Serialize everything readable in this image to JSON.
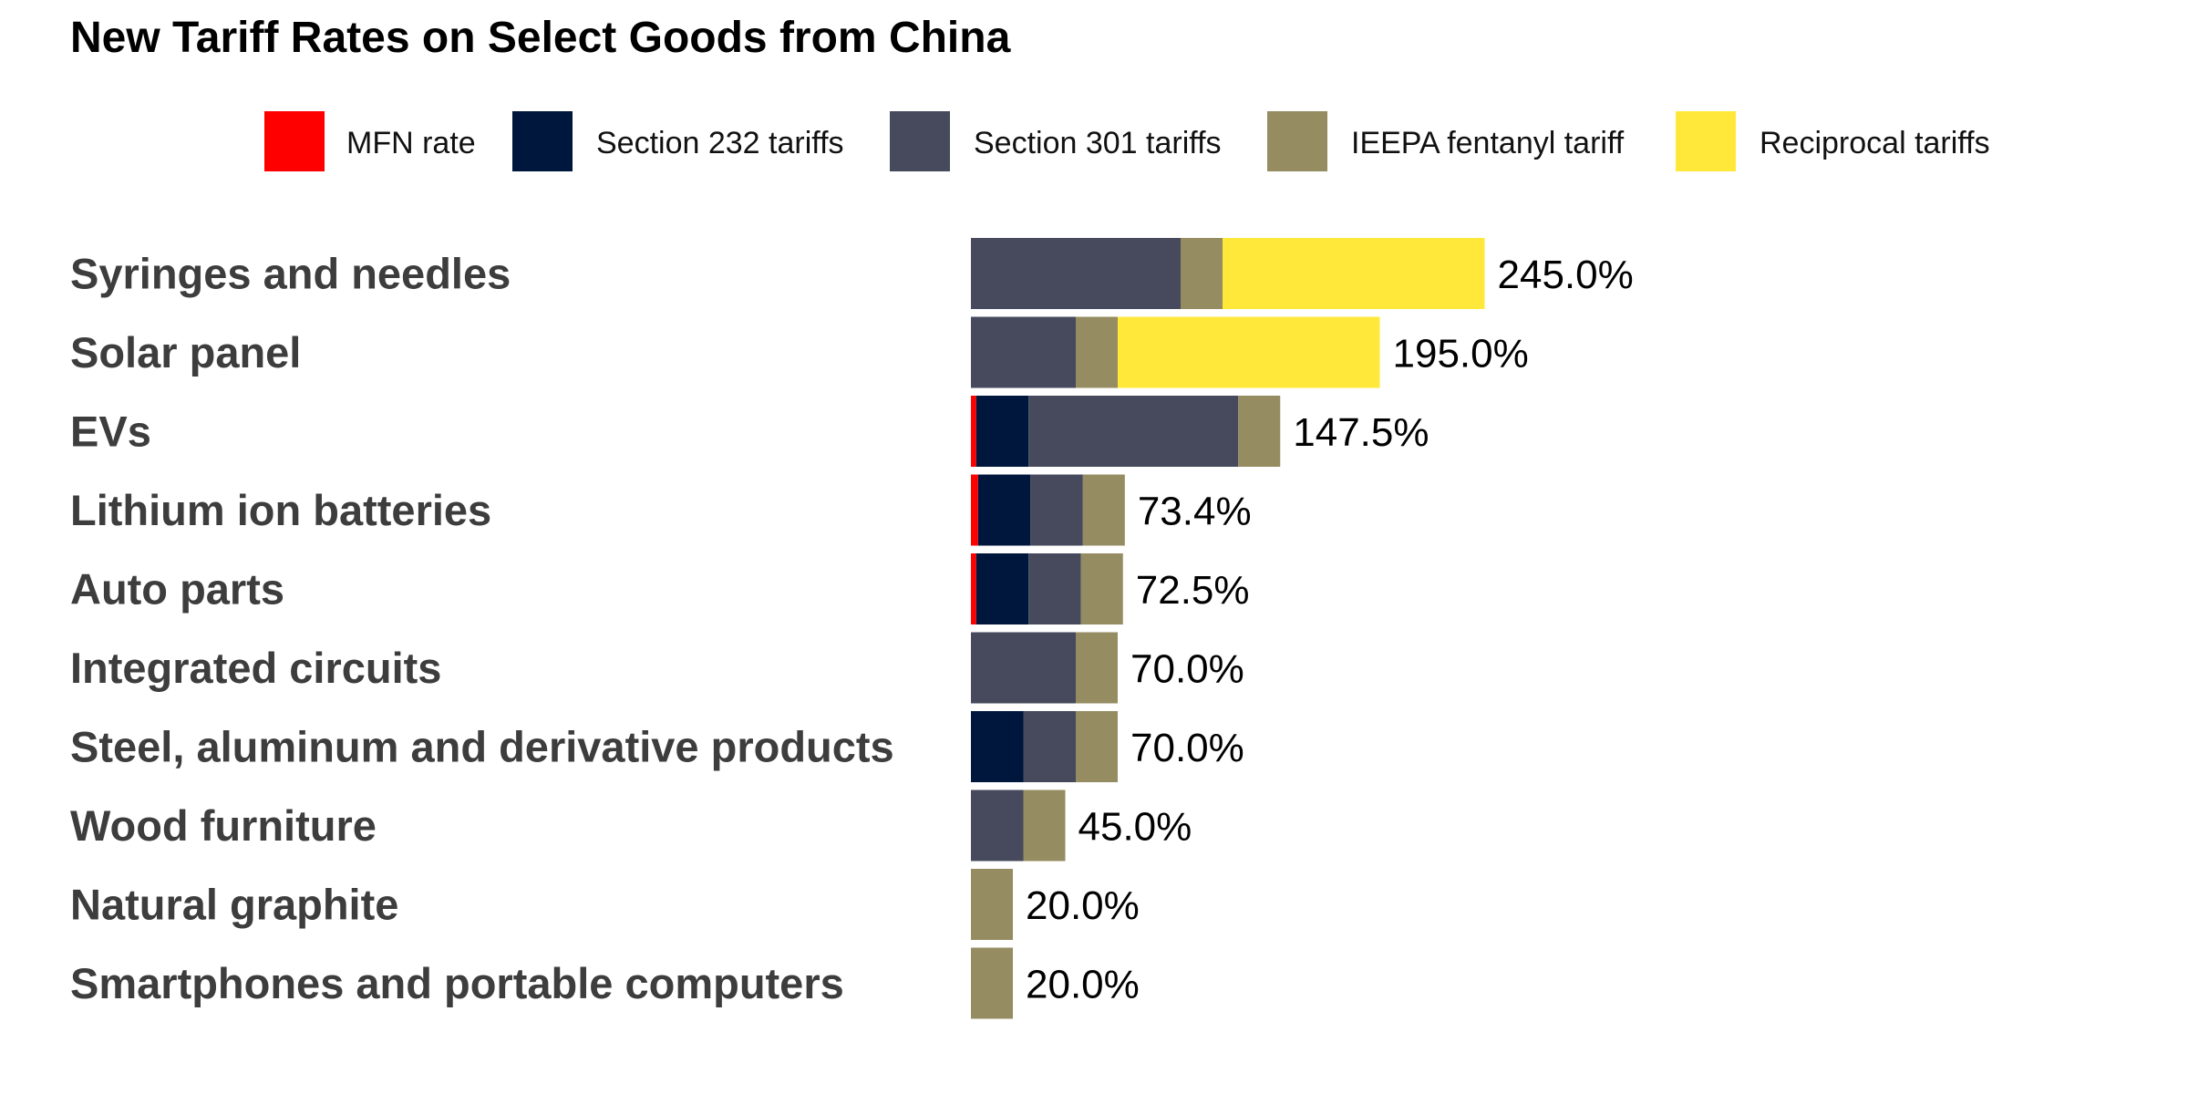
{
  "chart_data": {
    "type": "bar",
    "orientation": "horizontal",
    "stacked": true,
    "title": "New Tariff Rates on Select Goods from China",
    "xlabel": "",
    "ylabel": "",
    "xlim": [
      0,
      245
    ],
    "grid": false,
    "legend_position": "top",
    "categories": [
      "Syringes and needles",
      "Solar panel",
      "EVs",
      "Lithium ion batteries",
      "Auto parts",
      "Integrated circuits",
      "Steel, aluminum and derivative products",
      "Wood furniture",
      "Natural graphite",
      "Smartphones and portable computers"
    ],
    "series": [
      {
        "name": "MFN rate",
        "color": "#ff0000",
        "values": [
          0,
          0,
          2.5,
          3.4,
          2.5,
          0,
          0,
          0,
          0,
          0
        ]
      },
      {
        "name": "Section 232 tariffs",
        "color": "#00173d",
        "values": [
          0,
          0,
          25,
          25,
          25,
          0,
          25,
          0,
          0,
          0
        ]
      },
      {
        "name": "Section 301 tariffs",
        "color": "#464a5c",
        "values": [
          100,
          50,
          100,
          25,
          25,
          50,
          25,
          25,
          0,
          0
        ]
      },
      {
        "name": "IEEPA fentanyl tariff",
        "color": "#958c61",
        "values": [
          20,
          20,
          20,
          20,
          20,
          20,
          20,
          20,
          20,
          20
        ]
      },
      {
        "name": "Reciprocal tariffs",
        "color": "#ffe83a",
        "values": [
          125,
          125,
          0,
          0,
          0,
          0,
          0,
          0,
          0,
          0
        ]
      }
    ],
    "totals": [
      "245.0%",
      "195.0%",
      "147.5%",
      "73.4%",
      "72.5%",
      "70.0%",
      "70.0%",
      "45.0%",
      "20.0%",
      "20.0%"
    ]
  }
}
